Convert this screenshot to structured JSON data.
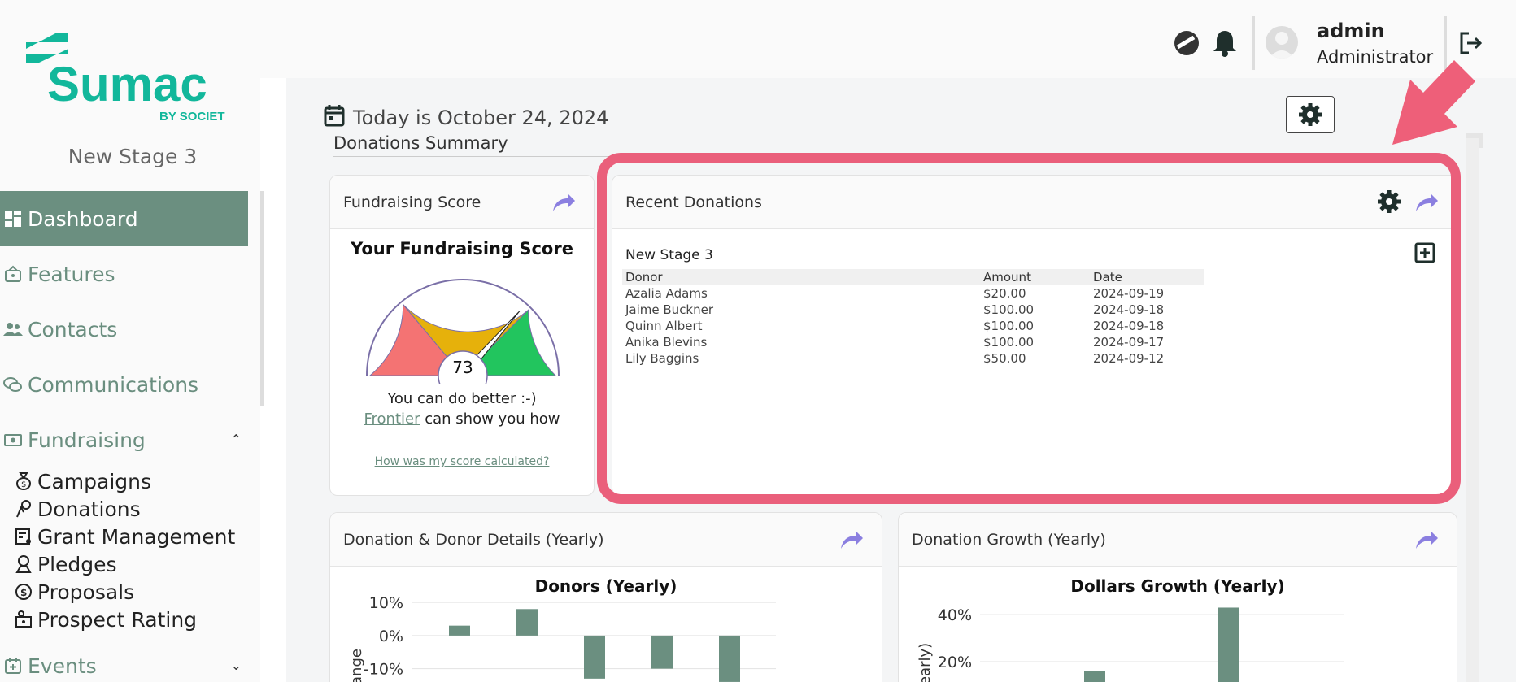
{
  "sidebar": {
    "logo_main": "Sumac",
    "logo_sub": "BY SOCIET",
    "stage_name": "New Stage 3",
    "nav": [
      {
        "label": "Dashboard",
        "icon": "dashboard-icon",
        "active": true
      },
      {
        "label": "Features",
        "icon": "features-icon"
      },
      {
        "label": "Contacts",
        "icon": "contacts-icon"
      },
      {
        "label": "Communications",
        "icon": "communications-icon"
      },
      {
        "label": "Fundraising",
        "icon": "fundraising-icon",
        "expanded": true
      }
    ],
    "sub": [
      {
        "label": "Campaigns",
        "icon": "money-bag-icon"
      },
      {
        "label": "Donations",
        "icon": "hand-coin-icon"
      },
      {
        "label": "Grant Management",
        "icon": "grant-icon"
      },
      {
        "label": "Pledges",
        "icon": "pledge-icon"
      },
      {
        "label": "Proposals",
        "icon": "dollar-circle-icon"
      },
      {
        "label": "Prospect Rating",
        "icon": "prospect-icon"
      }
    ],
    "events": {
      "label": "Events",
      "icon": "events-icon"
    }
  },
  "topbar": {
    "username": "admin",
    "role": "Administrator"
  },
  "main": {
    "today": "Today is October 24, 2024",
    "summary_title": "Donations Summary"
  },
  "fundraising_card": {
    "title": "Fundraising Score",
    "heading": "Your Fundraising Score",
    "score": "73",
    "score_value": 73,
    "message": "You can do better :-)",
    "link": "Frontier",
    "link_suffix": " can show you how",
    "calc_link": "How was my score calculated?",
    "colors": {
      "red": "#f47373",
      "yellow": "#e6b10b",
      "green": "#22c55e"
    }
  },
  "recent_card": {
    "title": "Recent Donations",
    "stage": "New Stage 3",
    "columns": [
      "Donor",
      "Amount",
      "Date"
    ],
    "rows": [
      [
        "Azalia Adams",
        "$20.00",
        "2024-09-19"
      ],
      [
        "Jaime Buckner",
        "$100.00",
        "2024-09-18"
      ],
      [
        "Quinn Albert",
        "$100.00",
        "2024-09-18"
      ],
      [
        "Anika Blevins",
        "$100.00",
        "2024-09-17"
      ],
      [
        "Lily Baggins",
        "$50.00",
        "2024-09-12"
      ]
    ]
  },
  "donor_card": {
    "title": "Donation & Donor Details (Yearly)",
    "chart_title": "Donors (Yearly)",
    "ylabel": "ange"
  },
  "growth_card": {
    "title": "Donation Growth (Yearly)",
    "chart_title": "Dollars Growth (Yearly)",
    "ylabel": "early)"
  },
  "chart_data": [
    {
      "type": "bar",
      "title": "Donors (Yearly)",
      "ylabel": "ange",
      "yticks": [
        "10%",
        "0%",
        "-10%"
      ],
      "ylim": [
        -15,
        12
      ],
      "values": [
        3,
        8,
        -13,
        -10,
        -14
      ],
      "color": "#6b8f80"
    },
    {
      "type": "bar",
      "title": "Dollars Growth (Yearly)",
      "ylabel": "early)",
      "yticks": [
        "40%",
        "20%"
      ],
      "ylim": [
        10,
        48
      ],
      "values": [
        16,
        43
      ],
      "color": "#6b8f80"
    }
  ],
  "colors": {
    "accent": "#6b8f80",
    "brand": "#12b79b",
    "highlight": "#ea5f7b",
    "share": "#8b7fe0"
  }
}
